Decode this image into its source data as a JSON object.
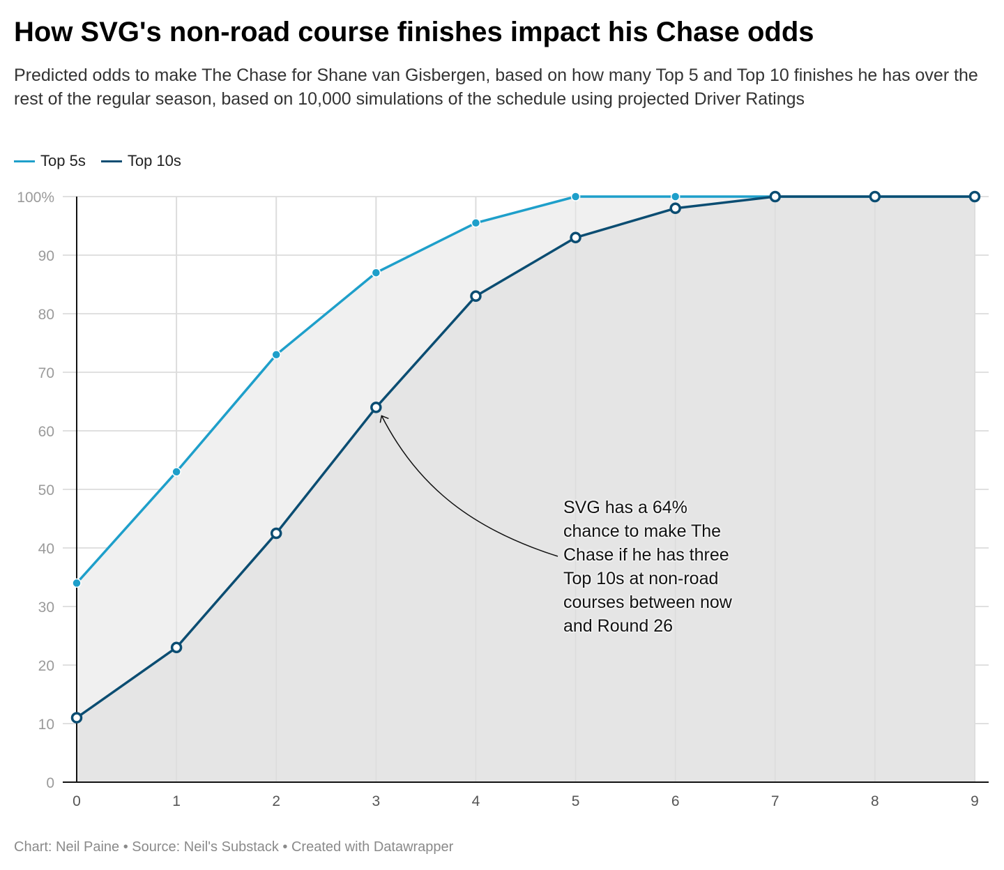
{
  "header": {
    "title": "How SVG's non-road course finishes impact his Chase odds",
    "subtitle": "Predicted odds to make The Chase for Shane van Gisbergen, based on how many Top 5 and Top 10 finishes he has over the rest of the regular season, based on 10,000 simulations of the schedule using projected Driver Ratings"
  },
  "legend": [
    {
      "label": "Top 5s",
      "color": "#1e9fca"
    },
    {
      "label": "Top 10s",
      "color": "#0b4d72"
    }
  ],
  "chart_data": {
    "type": "line",
    "x": [
      0,
      1,
      2,
      3,
      4,
      5,
      6,
      7,
      8,
      9
    ],
    "series": [
      {
        "name": "Top 5s",
        "color": "#1e9fca",
        "marker": "filled",
        "values": [
          34,
          53,
          73,
          87,
          95.5,
          100,
          100,
          100,
          100,
          100
        ]
      },
      {
        "name": "Top 10s",
        "color": "#0b4d72",
        "marker": "hollow",
        "values": [
          11,
          23,
          42.5,
          64,
          83,
          93,
          98,
          100,
          100,
          100
        ]
      }
    ],
    "xlim": [
      0,
      9
    ],
    "ylim": [
      0,
      100
    ],
    "y_ticks": [
      {
        "value": 100,
        "label": "100%"
      },
      {
        "value": 90,
        "label": "90"
      },
      {
        "value": 80,
        "label": "80"
      },
      {
        "value": 70,
        "label": "70"
      },
      {
        "value": 60,
        "label": "60"
      },
      {
        "value": 50,
        "label": "50"
      },
      {
        "value": 40,
        "label": "40"
      },
      {
        "value": 30,
        "label": "30"
      },
      {
        "value": 20,
        "label": "20"
      },
      {
        "value": 10,
        "label": "10"
      },
      {
        "value": 0,
        "label": "0"
      }
    ],
    "x_ticks": [
      "0",
      "1",
      "2",
      "3",
      "4",
      "5",
      "6",
      "7",
      "8",
      "9"
    ],
    "grid": true,
    "area_fill": {
      "top5_band": "#f0f0f0",
      "top10_area": "#e5e5e5"
    },
    "legend_position": "top-left",
    "annotation": {
      "text": "SVG has a 64%\nchance to make The\nChase if he has three\nTop 10s at non-road\ncourses between now\nand Round 26",
      "target_x": 3,
      "target_y": 64
    }
  },
  "footer": {
    "credit": "Chart: Neil Paine • Source: Neil's Substack • Created with Datawrapper"
  }
}
